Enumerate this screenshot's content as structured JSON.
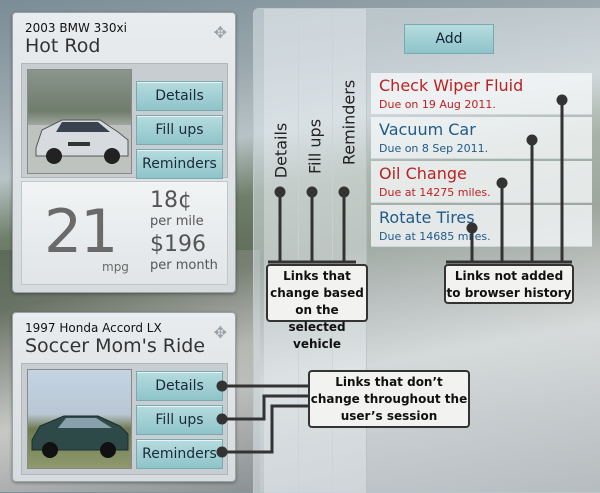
{
  "vehicles": [
    {
      "model": "2003 BMW 330xi",
      "nickname": "Hot Rod",
      "buttons": [
        "Details",
        "Fill ups",
        "Reminders"
      ],
      "mpg": "21",
      "mpg_label": "mpg",
      "cost_per_mile": "18¢",
      "per_mile_label": "per mile",
      "cost_per_month": "$196",
      "per_month_label": "per month"
    },
    {
      "model": "1997 Honda Accord LX",
      "nickname": "Soccer Mom's Ride",
      "buttons": [
        "Details",
        "Fill ups",
        "Reminders"
      ]
    }
  ],
  "tabs": [
    "Details",
    "Fill ups",
    "Reminders"
  ],
  "add_label": "Add",
  "reminders": [
    {
      "title": "Check Wiper Fluid",
      "due": "Due on 19 Aug 2011.",
      "status": "overdue"
    },
    {
      "title": "Vacuum Car",
      "due": "Due on 8 Sep 2011.",
      "status": "upcoming"
    },
    {
      "title": "Oil Change",
      "due": "Due at 14275 miles.",
      "status": "overdue"
    },
    {
      "title": "Rotate Tires",
      "due": "Due at 14685 miles.",
      "status": "upcoming"
    }
  ],
  "callouts": {
    "change": "Links that change based on the selected vehicle",
    "history": "Links not added to browser history",
    "session": "Links that don’t change throughout the user’s session"
  },
  "colors": {
    "button": "#a4d0d4",
    "overdue": "#bb2222",
    "upcoming": "#1f5a8a"
  },
  "icons": {
    "move": "move-icon"
  }
}
